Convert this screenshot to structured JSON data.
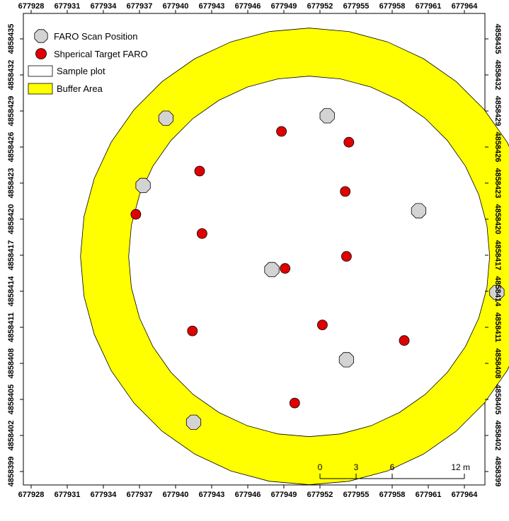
{
  "map": {
    "x_ticks": [
      "677928",
      "677931",
      "677934",
      "677937",
      "677940",
      "677943",
      "677946",
      "677949",
      "677952",
      "677955",
      "677958",
      "677961",
      "677964"
    ],
    "y_ticks": [
      "4858435",
      "4858432",
      "4858429",
      "4858426",
      "4858423",
      "4858420",
      "4858417",
      "4858414",
      "4858411",
      "4858408",
      "4858405",
      "4858402",
      "4858399"
    ],
    "plot_center": {
      "x": 677951.1,
      "y": 4858416.9
    },
    "buffer_outer_radius_m": 19.0,
    "buffer_inner_radius_m": 15.0,
    "colors": {
      "buffer_fill": "#ffff00",
      "sample_plot_fill": "#ffffff",
      "scan_fill": "#d3d3d3",
      "target_fill": "#e00000",
      "outline": "#000000"
    }
  },
  "legend": {
    "items": [
      {
        "symbol": "scan-position",
        "label": "FARO Scan Position"
      },
      {
        "symbol": "target",
        "label": "Shperical Target FARO"
      },
      {
        "symbol": "sample-plot",
        "label": "Sample plot"
      },
      {
        "symbol": "buffer",
        "label": "Buffer Area"
      }
    ]
  },
  "scale_bar": {
    "labels": [
      "0",
      "3",
      "6",
      "12 m"
    ],
    "values_m": [
      0,
      3,
      6,
      12
    ]
  },
  "scan_positions": [
    {
      "x": 677939.2,
      "y": 4858428.4
    },
    {
      "x": 677952.6,
      "y": 4858428.6
    },
    {
      "x": 677937.3,
      "y": 4858422.8
    },
    {
      "x": 677960.2,
      "y": 4858420.7
    },
    {
      "x": 677948.0,
      "y": 4858415.8
    },
    {
      "x": 677966.7,
      "y": 4858413.9
    },
    {
      "x": 677954.2,
      "y": 4858408.3
    },
    {
      "x": 677941.5,
      "y": 4858403.1
    }
  ],
  "targets": [
    {
      "x": 677948.8,
      "y": 4858427.3
    },
    {
      "x": 677954.4,
      "y": 4858426.4
    },
    {
      "x": 677942.0,
      "y": 4858424.0
    },
    {
      "x": 677954.1,
      "y": 4858422.3
    },
    {
      "x": 677936.7,
      "y": 4858420.4
    },
    {
      "x": 677942.2,
      "y": 4858418.8
    },
    {
      "x": 677954.2,
      "y": 4858416.9
    },
    {
      "x": 677949.1,
      "y": 4858415.9
    },
    {
      "x": 677952.2,
      "y": 4858411.2
    },
    {
      "x": 677941.4,
      "y": 4858410.7
    },
    {
      "x": 677959.0,
      "y": 4858409.9
    },
    {
      "x": 677949.9,
      "y": 4858404.7
    }
  ]
}
